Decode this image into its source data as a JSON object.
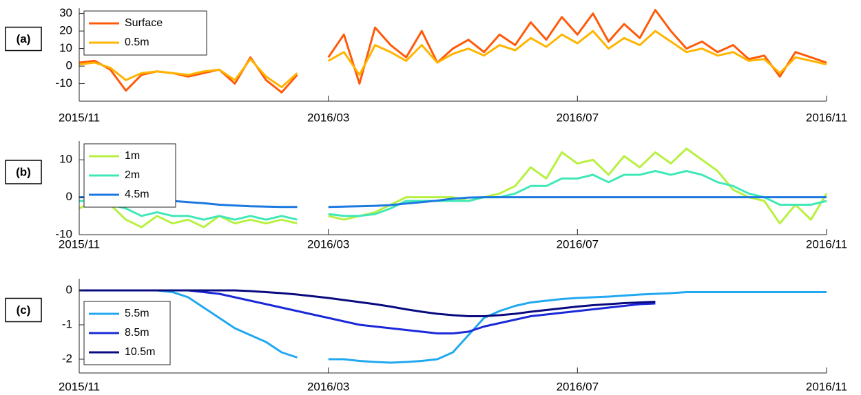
{
  "chart_data": [
    {
      "type": "line",
      "panel_label": "(a)",
      "x": [
        0,
        0.25,
        0.5,
        0.75,
        1,
        1.25,
        1.5,
        1.75,
        2,
        2.25,
        2.5,
        2.75,
        3,
        3.25,
        3.5,
        3.75,
        4,
        4.25,
        4.5,
        4.75,
        5,
        5.25,
        5.5,
        5.75,
        6,
        6.25,
        6.5,
        6.75,
        7,
        7.25,
        7.5,
        7.75,
        8,
        8.25,
        8.5,
        8.75,
        9,
        9.25,
        9.5,
        9.75,
        10,
        10.25,
        10.5,
        10.75,
        11,
        11.25,
        11.5,
        11.75,
        12
      ],
      "xlim": [
        0,
        12
      ],
      "xticks": [
        {
          "value": 0,
          "label": "2015/11"
        },
        {
          "value": 4,
          "label": "2016/03"
        },
        {
          "value": 8,
          "label": "2016/07"
        },
        {
          "value": 12,
          "label": "2016/11"
        }
      ],
      "ylim": [
        -20,
        33
      ],
      "yticks": [
        -10,
        0,
        10,
        20,
        30
      ],
      "legend": "upper left",
      "series": [
        {
          "name": "Surface",
          "color": "#ff5a0a",
          "values": [
            2,
            3,
            -2,
            -14,
            -5,
            -3,
            -4,
            -6,
            -4,
            -2,
            -10,
            5,
            -8,
            -15,
            -5,
            null,
            5,
            18,
            -10,
            22,
            12,
            5,
            20,
            2,
            10,
            15,
            8,
            18,
            12,
            25,
            15,
            28,
            18,
            30,
            14,
            24,
            16,
            32,
            20,
            10,
            14,
            8,
            12,
            4,
            6,
            -6,
            8,
            5,
            2
          ]
        },
        {
          "name": "0.5m",
          "color": "#ffb400",
          "values": [
            1,
            2,
            -1,
            -8,
            -4,
            -3,
            -4,
            -5,
            -3,
            -2,
            -8,
            4,
            -6,
            -12,
            -4,
            null,
            3,
            8,
            -5,
            12,
            8,
            3,
            12,
            2,
            7,
            10,
            6,
            12,
            9,
            16,
            11,
            18,
            13,
            20,
            10,
            16,
            12,
            20,
            14,
            8,
            10,
            6,
            8,
            3,
            4,
            -4,
            5,
            3,
            1
          ]
        }
      ]
    },
    {
      "type": "line",
      "panel_label": "(b)",
      "x": [
        0,
        0.25,
        0.5,
        0.75,
        1,
        1.25,
        1.5,
        1.75,
        2,
        2.25,
        2.5,
        2.75,
        3,
        3.25,
        3.5,
        3.75,
        4,
        4.25,
        4.5,
        4.75,
        5,
        5.25,
        5.5,
        5.75,
        6,
        6.25,
        6.5,
        6.75,
        7,
        7.25,
        7.5,
        7.75,
        8,
        8.25,
        8.5,
        8.75,
        9,
        9.25,
        9.5,
        9.75,
        10,
        10.25,
        10.5,
        10.75,
        11,
        11.25,
        11.5,
        11.75,
        12
      ],
      "xlim": [
        0,
        12
      ],
      "xticks": [
        {
          "value": 0,
          "label": "2015/11"
        },
        {
          "value": 4,
          "label": "2016/03"
        },
        {
          "value": 8,
          "label": "2016/07"
        },
        {
          "value": 12,
          "label": "2016/11"
        }
      ],
      "ylim": [
        -10,
        15
      ],
      "yticks": [
        -10,
        0,
        10
      ],
      "legend": "upper left",
      "series": [
        {
          "name": "1m",
          "color": "#b8f040",
          "values": [
            -3,
            -1,
            -2,
            -6,
            -8,
            -5,
            -7,
            -6,
            -8,
            -5,
            -7,
            -6,
            -7,
            -6,
            -7,
            null,
            -5,
            -6,
            -5,
            -4,
            -2,
            0,
            0,
            0,
            0,
            -1,
            0,
            1,
            3,
            8,
            5,
            12,
            9,
            10,
            6,
            11,
            8,
            12,
            9,
            13,
            10,
            7,
            2,
            0,
            -1,
            -7,
            -2,
            -6,
            1
          ]
        },
        {
          "name": "2m",
          "color": "#40e8b8",
          "values": [
            -1,
            -1,
            -2,
            -3,
            -5,
            -4,
            -5,
            -5,
            -6,
            -5,
            -6,
            -5,
            -6,
            -5,
            -6,
            null,
            -4.5,
            -5,
            -5,
            -4.5,
            -3,
            -1,
            -1,
            -1,
            -1,
            -1,
            0,
            0,
            1,
            3,
            3,
            5,
            5,
            6,
            4,
            6,
            6,
            7,
            6,
            7,
            6,
            4,
            3,
            1,
            0,
            -2,
            -2,
            -2,
            -1
          ]
        },
        {
          "name": "4.5m",
          "color": "#1a78e0",
          "values": [
            0,
            0,
            0,
            0,
            -0.3,
            -0.7,
            -1,
            -1.3,
            -1.6,
            -2,
            -2.2,
            -2.4,
            -2.5,
            -2.6,
            -2.6,
            null,
            -2.6,
            -2.5,
            -2.4,
            -2.3,
            -2.1,
            -1.7,
            -1.3,
            -0.9,
            -0.4,
            -0.1,
            0,
            0,
            0,
            0,
            0,
            0,
            0,
            0,
            0,
            0,
            0,
            0,
            0,
            0,
            0,
            0,
            0,
            0,
            0,
            0,
            0,
            0,
            0
          ]
        }
      ]
    },
    {
      "type": "line",
      "panel_label": "(c)",
      "x": [
        0,
        0.25,
        0.5,
        0.75,
        1,
        1.25,
        1.5,
        1.75,
        2,
        2.25,
        2.5,
        2.75,
        3,
        3.25,
        3.5,
        3.75,
        4,
        4.25,
        4.5,
        4.75,
        5,
        5.25,
        5.5,
        5.75,
        6,
        6.25,
        6.5,
        6.75,
        7,
        7.25,
        7.5,
        7.75,
        8,
        8.25,
        8.5,
        8.75,
        9,
        9.25,
        9.5,
        9.75,
        10,
        10.25,
        10.5,
        10.75,
        11,
        11.25,
        11.5,
        11.75,
        12
      ],
      "xlim": [
        0,
        12
      ],
      "xticks": [
        {
          "value": 0,
          "label": "2015/11"
        },
        {
          "value": 4,
          "label": "2016/03"
        },
        {
          "value": 8,
          "label": "2016/07"
        },
        {
          "value": 12,
          "label": "2016/11"
        }
      ],
      "ylim": [
        -2.4,
        0.34
      ],
      "yticks": [
        -2,
        -1,
        0
      ],
      "legend": "lower left",
      "series": [
        {
          "name": "5.5m",
          "color": "#20a8f0",
          "values": [
            0,
            0,
            0,
            0,
            0,
            0,
            -0.05,
            -0.2,
            -0.5,
            -0.8,
            -1.1,
            -1.3,
            -1.5,
            -1.8,
            -1.95,
            null,
            -2,
            -2,
            -2.05,
            -2.08,
            -2.1,
            -2.08,
            -2.05,
            -2,
            -1.8,
            -1.3,
            -0.8,
            -0.6,
            -0.45,
            -0.35,
            -0.3,
            -0.25,
            -0.22,
            -0.2,
            -0.18,
            -0.15,
            -0.12,
            -0.1,
            -0.08,
            -0.05,
            -0.05,
            -0.05,
            -0.05,
            -0.05,
            -0.05,
            -0.05,
            -0.05,
            -0.05,
            -0.05
          ]
        },
        {
          "name": "8.5m",
          "color": "#1a28d8",
          "values": [
            0,
            0,
            0,
            0,
            0,
            0,
            0,
            0,
            -0.05,
            -0.1,
            -0.2,
            -0.3,
            -0.4,
            -0.5,
            -0.6,
            -0.7,
            -0.8,
            -0.9,
            -1,
            -1.05,
            -1.1,
            -1.15,
            -1.2,
            -1.25,
            -1.25,
            -1.2,
            -1.05,
            -0.95,
            -0.85,
            -0.75,
            -0.7,
            -0.65,
            -0.6,
            -0.55,
            -0.5,
            -0.45,
            -0.4,
            -0.38,
            null,
            null,
            null,
            null,
            null,
            null,
            null,
            null,
            null,
            null,
            null
          ]
        },
        {
          "name": "10.5m",
          "color": "#0a0a80",
          "values": [
            0,
            0,
            0,
            0,
            0,
            0,
            0,
            0,
            0,
            0,
            0,
            -0.02,
            -0.05,
            -0.08,
            -0.12,
            -0.17,
            -0.22,
            -0.28,
            -0.34,
            -0.4,
            -0.47,
            -0.55,
            -0.62,
            -0.68,
            -0.72,
            -0.75,
            -0.75,
            -0.72,
            -0.68,
            -0.62,
            -0.57,
            -0.52,
            -0.47,
            -0.43,
            -0.4,
            -0.37,
            -0.35,
            -0.33,
            null,
            null,
            null,
            null,
            null,
            null,
            null,
            null,
            null,
            null,
            null
          ]
        }
      ]
    }
  ]
}
